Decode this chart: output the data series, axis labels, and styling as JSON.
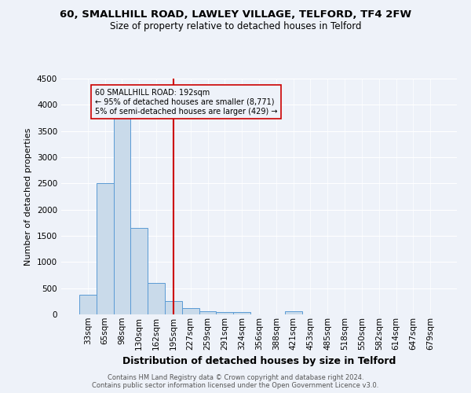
{
  "title": "60, SMALLHILL ROAD, LAWLEY VILLAGE, TELFORD, TF4 2FW",
  "subtitle": "Size of property relative to detached houses in Telford",
  "xlabel": "Distribution of detached houses by size in Telford",
  "ylabel": "Number of detached properties",
  "bar_labels": [
    "33sqm",
    "65sqm",
    "98sqm",
    "130sqm",
    "162sqm",
    "195sqm",
    "227sqm",
    "259sqm",
    "291sqm",
    "324sqm",
    "356sqm",
    "388sqm",
    "421sqm",
    "453sqm",
    "485sqm",
    "518sqm",
    "550sqm",
    "582sqm",
    "614sqm",
    "647sqm",
    "679sqm"
  ],
  "bar_values": [
    380,
    2500,
    3750,
    1650,
    600,
    250,
    115,
    60,
    40,
    40,
    0,
    0,
    60,
    0,
    0,
    0,
    0,
    0,
    0,
    0,
    0
  ],
  "bar_color": "#c9daea",
  "bar_edge_color": "#5b9bd5",
  "vline_x": 5,
  "vline_color": "#cc0000",
  "annotation_text": "60 SMALLHILL ROAD: 192sqm\n← 95% of detached houses are smaller (8,771)\n5% of semi-detached houses are larger (429) →",
  "annotation_box_edge": "#cc0000",
  "ylim": [
    0,
    4500
  ],
  "yticks": [
    0,
    500,
    1000,
    1500,
    2000,
    2500,
    3000,
    3500,
    4000,
    4500
  ],
  "footer_line1": "Contains HM Land Registry data © Crown copyright and database right 2024.",
  "footer_line2": "Contains public sector information licensed under the Open Government Licence v3.0.",
  "background_color": "#eef2f9",
  "grid_color": "#ffffff",
  "title_fontsize": 9.5,
  "subtitle_fontsize": 8.5,
  "axis_label_fontsize": 8,
  "tick_fontsize": 7.5
}
